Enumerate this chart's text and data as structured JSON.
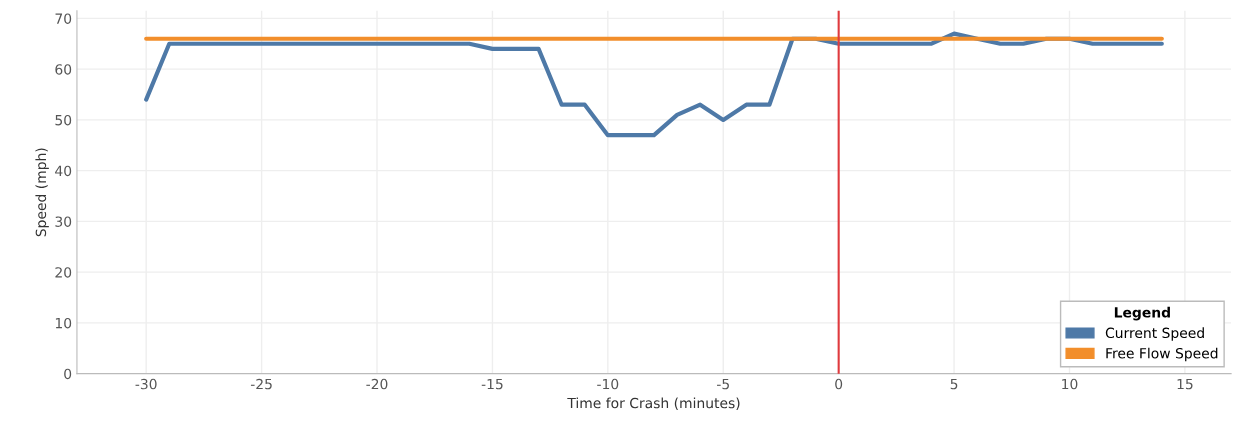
{
  "chart_data": {
    "type": "line",
    "xlabel": "Time for Crash (minutes)",
    "ylabel": "Speed (mph)",
    "legend_title": "Legend",
    "x": [
      -30,
      -29,
      -28,
      -27,
      -26,
      -25,
      -24,
      -23,
      -22,
      -21,
      -20,
      -19,
      -18,
      -17,
      -16,
      -15,
      -14,
      -13,
      -12,
      -11,
      -10,
      -9,
      -8,
      -7,
      -6,
      -5,
      -4,
      -3,
      -2,
      -1,
      0,
      1,
      2,
      3,
      4,
      5,
      6,
      7,
      8,
      9,
      10,
      11,
      12,
      13,
      14
    ],
    "series": [
      {
        "name": "Current Speed",
        "color": "#4e79a7",
        "values": [
          54,
          65,
          65,
          65,
          65,
          65,
          65,
          65,
          65,
          65,
          65,
          65,
          65,
          65,
          65,
          64,
          64,
          64,
          53,
          53,
          47,
          47,
          47,
          51,
          53,
          50,
          53,
          53,
          66,
          66,
          65,
          65,
          65,
          65,
          65,
          67,
          66,
          65,
          65,
          66,
          66,
          65,
          65,
          65,
          65
        ]
      },
      {
        "name": "Free Flow Speed",
        "color": "#f28e2b",
        "values": [
          66,
          66,
          66,
          66,
          66,
          66,
          66,
          66,
          66,
          66,
          66,
          66,
          66,
          66,
          66,
          66,
          66,
          66,
          66,
          66,
          66,
          66,
          66,
          66,
          66,
          66,
          66,
          66,
          66,
          66,
          66,
          66,
          66,
          66,
          66,
          66,
          66,
          66,
          66,
          66,
          66,
          66,
          66,
          66,
          66
        ]
      }
    ],
    "xlim": [
      -33,
      17
    ],
    "xticks": [
      -30,
      -25,
      -20,
      -15,
      -10,
      -5,
      0,
      5,
      10,
      15
    ],
    "ylim": [
      0,
      71.5
    ],
    "yticks": [
      0,
      10,
      20,
      30,
      40,
      50,
      60,
      70
    ],
    "ref_lines": [
      {
        "axis": "x",
        "value": 0,
        "color": "#e03a3e"
      }
    ],
    "grid": true,
    "legend": "bottom right"
  }
}
